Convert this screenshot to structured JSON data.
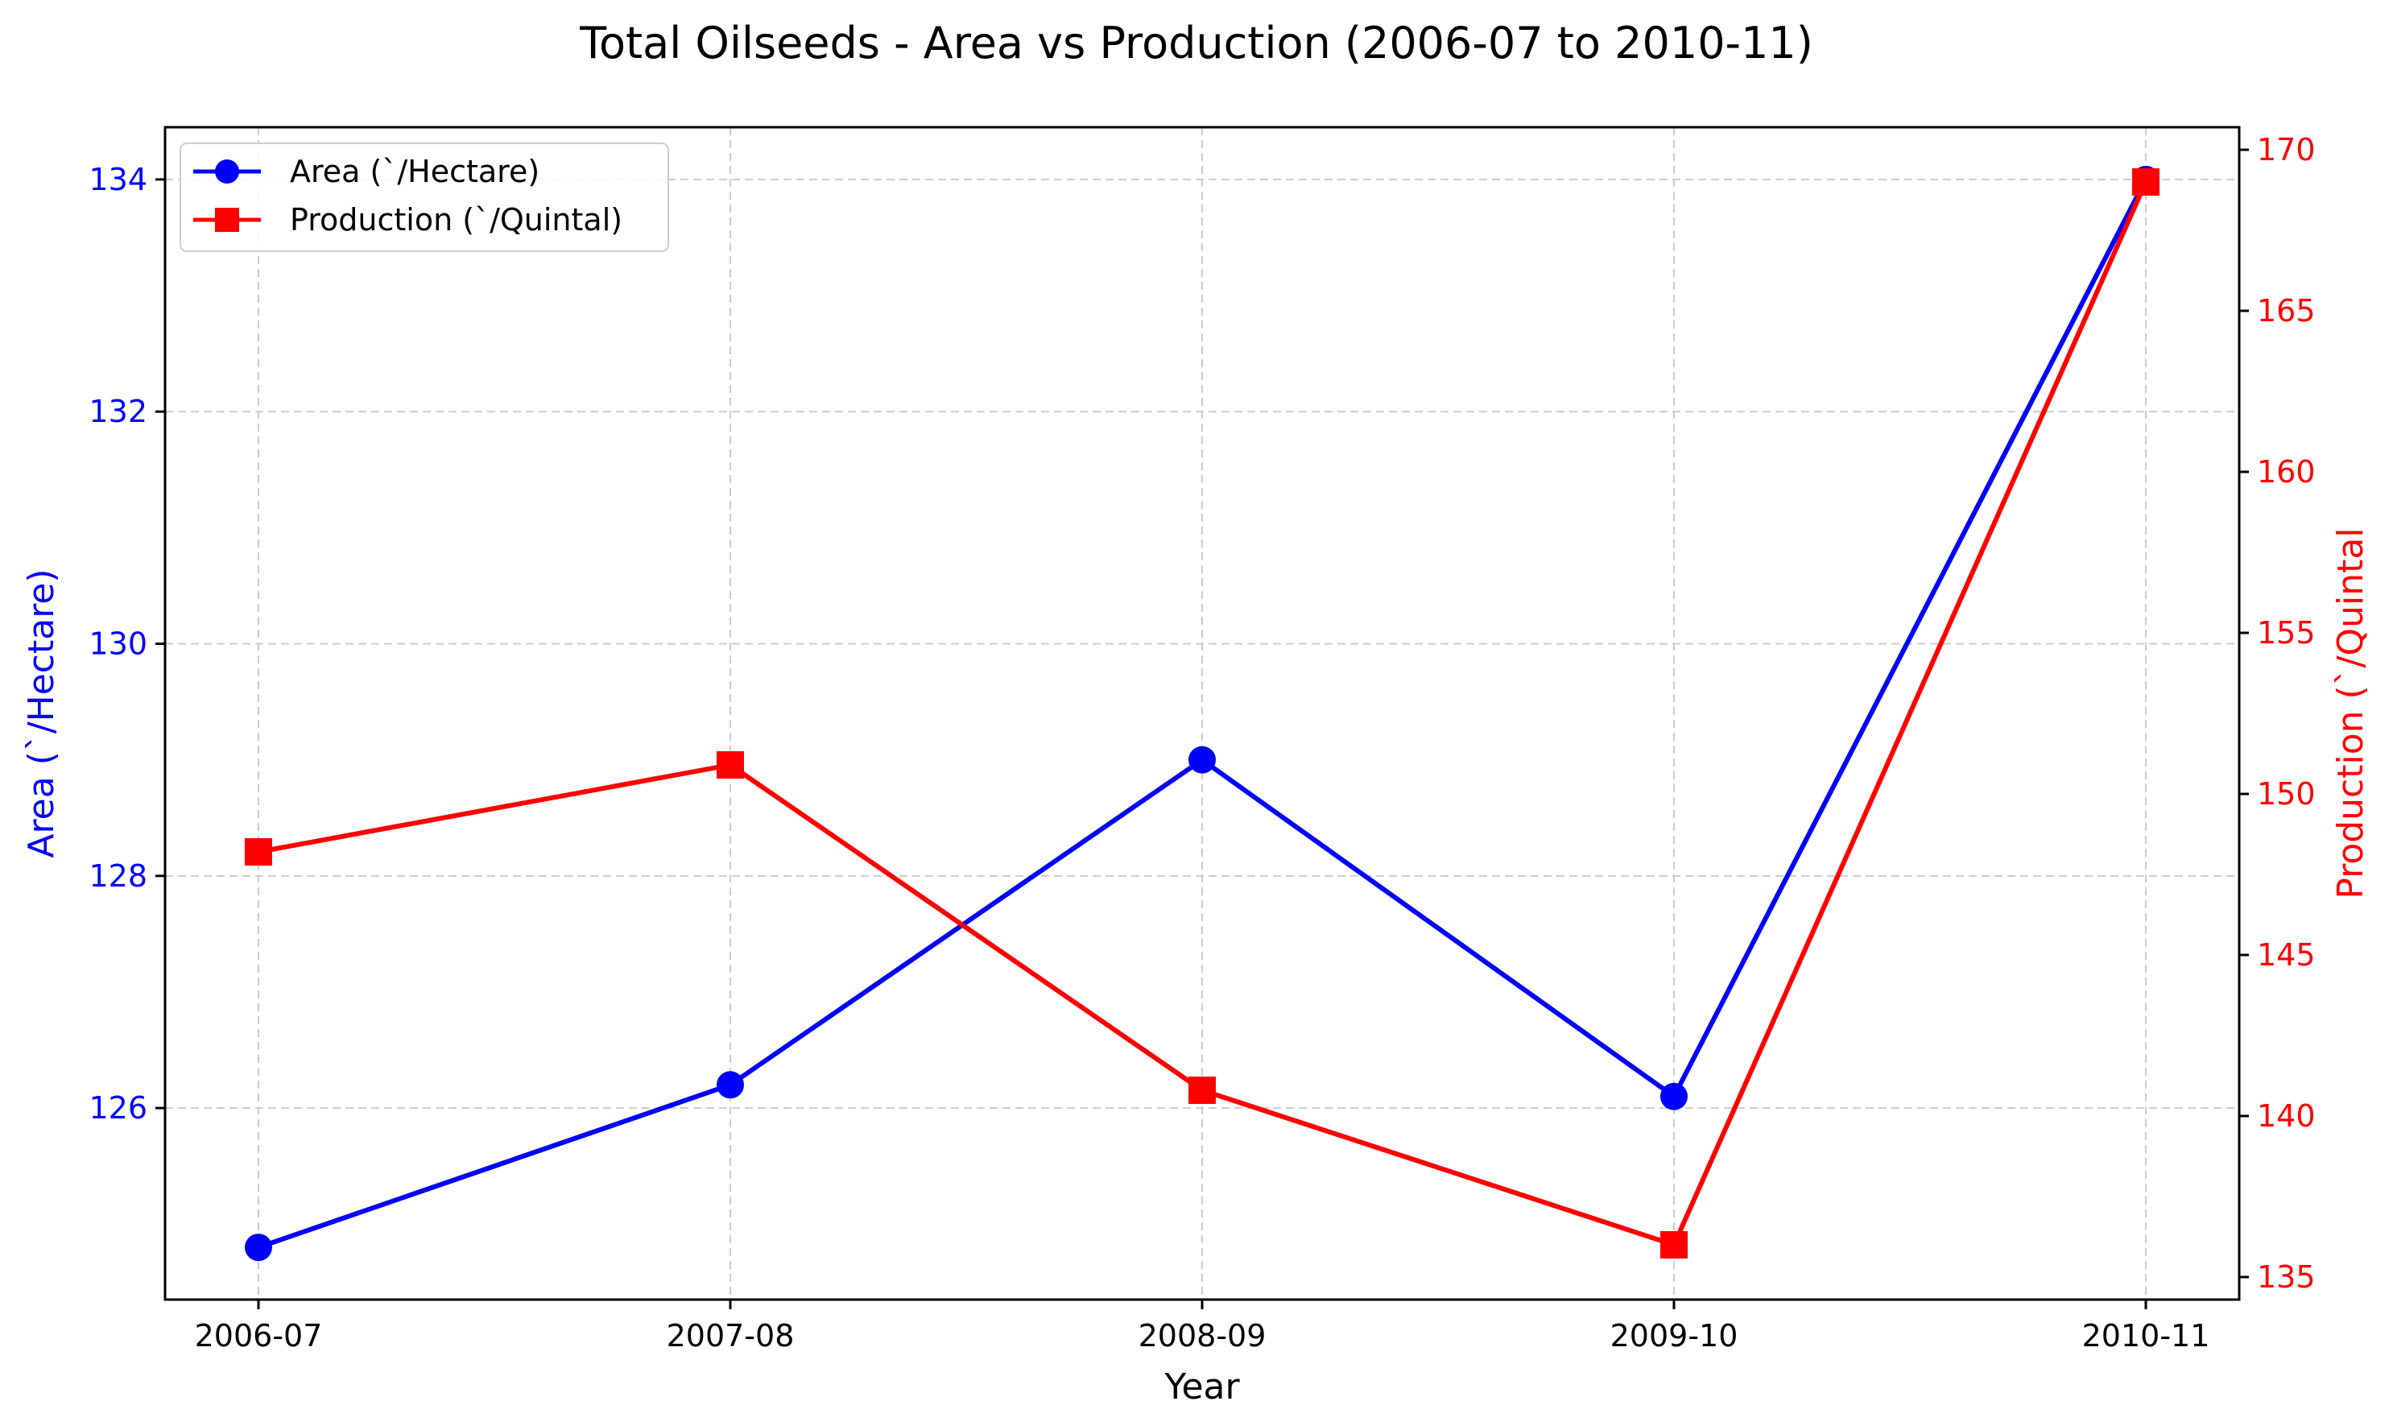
{
  "chart_data": {
    "type": "line",
    "title": "Total Oilseeds - Area vs Production (2006-07 to 2010-11)",
    "xlabel": "Year",
    "categories": [
      "2006-07",
      "2007-08",
      "2008-09",
      "2009-10",
      "2010-11"
    ],
    "y_left": {
      "label": "Area (`/Hectare)",
      "range": [
        124.35,
        134.45
      ],
      "ticks": [
        126,
        128,
        130,
        132,
        134
      ],
      "tick_labels": [
        "126",
        "128",
        "130",
        "132",
        "134"
      ],
      "color": "#0000ff"
    },
    "y_right": {
      "label": "Production (`/Quintal",
      "range": [
        134.3,
        170.7
      ],
      "ticks": [
        135,
        140,
        145,
        150,
        155,
        160,
        165,
        170
      ],
      "tick_labels": [
        "135",
        "140",
        "145",
        "150",
        "155",
        "160",
        "165",
        "170"
      ],
      "color": "#ff0000"
    },
    "series": [
      {
        "name": "Area (`/Hectare)",
        "axis": "left",
        "color": "#0000ff",
        "marker": "circle",
        "values": [
          124.8,
          126.2,
          129.0,
          126.1,
          134.0
        ]
      },
      {
        "name": "Production (`/Quintal)",
        "axis": "right",
        "color": "#ff0000",
        "marker": "square",
        "values": [
          148.2,
          150.9,
          140.8,
          136.0,
          169.0
        ]
      }
    ],
    "grid": true,
    "legend_position": "top-left"
  }
}
